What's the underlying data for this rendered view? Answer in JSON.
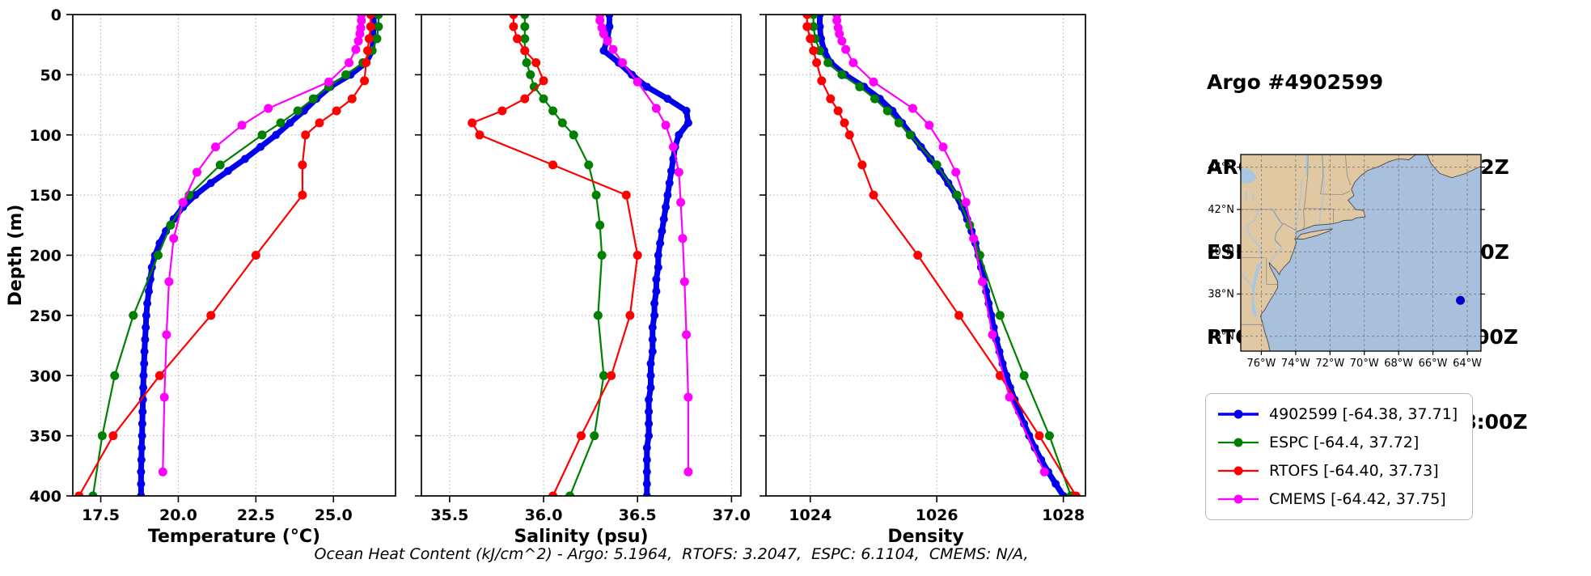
{
  "header": {
    "title": "Argo #4902599",
    "lines": [
      "ARGO: 2025-09-30T18:32Z",
      "ESPC : 2025-09-30T18:00Z",
      "RTOFS: 2025-09-30T18:00Z",
      "CMEMS: 2025-09-30T18:00Z"
    ]
  },
  "legend": {
    "items": [
      {
        "label": "4902599 [-64.38, 37.71]",
        "color": "#0000ee"
      },
      {
        "label": "ESPC [-64.4, 37.72]",
        "color": "#008000"
      },
      {
        "label": "RTOFS [-64.40, 37.73]",
        "color": "#ff0000"
      },
      {
        "label": "CMEMS [-64.42, 37.75]",
        "color": "#ff00ff"
      }
    ]
  },
  "map": {
    "extent": {
      "lon_min": -77.2,
      "lon_max": -63.2,
      "lat_min": 35.3,
      "lat_max": 44.6
    },
    "lat_ticks": [
      {
        "v": 44,
        "t": "44°N"
      },
      {
        "v": 42,
        "t": "42°N"
      },
      {
        "v": 40,
        "t": "40°N"
      },
      {
        "v": 38,
        "t": "38°N"
      },
      {
        "v": 36,
        "t": "36°N"
      }
    ],
    "lon_ticks": [
      {
        "v": -76,
        "t": "76°W"
      },
      {
        "v": -74,
        "t": "74°W"
      },
      {
        "v": -72,
        "t": "72°W"
      },
      {
        "v": -70,
        "t": "70°W"
      },
      {
        "v": -68,
        "t": "68°W"
      },
      {
        "v": -66,
        "t": "66°W"
      },
      {
        "v": -64,
        "t": "64°W"
      }
    ],
    "float_marker": {
      "lon": -64.4,
      "lat": 37.7,
      "color": "#0000cd"
    },
    "land_color": "#dfc8a2",
    "ocean_color": "#a9c0dd",
    "water_color": "#aac6e3",
    "border_color": "#8a8a8a",
    "coast_color": "#4a4a4a"
  },
  "chart_data": {
    "type": "line",
    "annotation": "Ocean Heat Content (kJ/cm^2) - Argo: 5.1964,  RTOFS: 3.2047,  ESPC: 6.1104,  CMEMS: N/A,",
    "y_axis": {
      "label": "Depth (m)",
      "lim": [
        0,
        400
      ],
      "ticks": [
        0,
        50,
        100,
        150,
        200,
        250,
        300,
        350,
        400
      ]
    },
    "panels": [
      {
        "key": "temperature",
        "xlabel": "Temperature (°C)",
        "xlim": [
          16.6,
          27.0
        ],
        "xticks": [
          {
            "v": 17.5,
            "t": "17.5"
          },
          {
            "v": 20.0,
            "t": "20.0"
          },
          {
            "v": 22.5,
            "t": "22.5"
          },
          {
            "v": 25.0,
            "t": "25.0"
          }
        ]
      },
      {
        "key": "salinity",
        "xlabel": "Salinity (psu)",
        "xlim": [
          35.35,
          37.05
        ],
        "xticks": [
          {
            "v": 35.5,
            "t": "35.5"
          },
          {
            "v": 36.0,
            "t": "36.0"
          },
          {
            "v": 36.5,
            "t": "36.5"
          },
          {
            "v": 37.0,
            "t": "37.0"
          }
        ]
      },
      {
        "key": "density",
        "xlabel": "Density",
        "xlim": [
          1023.3,
          1028.35
        ],
        "xticks": [
          {
            "v": 1024,
            "t": "1024"
          },
          {
            "v": 1026,
            "t": "1026"
          },
          {
            "v": 1028,
            "t": "1028"
          }
        ]
      }
    ],
    "series": [
      {
        "name": "4902599",
        "color": "#0000ee",
        "lw": 7,
        "ms": 5,
        "depths": [
          0,
          10,
          20,
          30,
          40,
          50,
          60,
          70,
          80,
          90,
          100,
          110,
          120,
          130,
          140,
          150,
          160,
          170,
          180,
          190,
          200,
          210,
          220,
          230,
          240,
          250,
          260,
          270,
          280,
          290,
          300,
          310,
          320,
          330,
          340,
          350,
          360,
          370,
          380,
          390,
          400
        ],
        "temperature": [
          26.3,
          26.3,
          26.28,
          26.25,
          26.05,
          25.55,
          24.9,
          24.45,
          24.05,
          23.6,
          23.15,
          22.65,
          22.15,
          21.6,
          21.05,
          20.55,
          20.15,
          19.85,
          19.6,
          19.4,
          19.25,
          19.15,
          19.1,
          19.05,
          19.0,
          18.97,
          18.95,
          18.93,
          18.91,
          18.9,
          18.88,
          18.87,
          18.86,
          18.85,
          18.84,
          18.83,
          18.82,
          18.81,
          18.8,
          18.8,
          18.8
        ],
        "salinity": [
          36.35,
          36.35,
          36.34,
          36.32,
          36.4,
          36.47,
          36.55,
          36.66,
          36.76,
          36.77,
          36.72,
          36.7,
          36.69,
          36.68,
          36.67,
          36.66,
          36.65,
          36.64,
          36.63,
          36.62,
          36.61,
          36.61,
          36.6,
          36.6,
          36.59,
          36.59,
          36.58,
          36.58,
          36.58,
          36.57,
          36.57,
          36.57,
          36.56,
          36.56,
          36.56,
          36.56,
          36.55,
          36.55,
          36.55,
          36.55,
          36.55
        ],
        "density": [
          1024.15,
          1024.15,
          1024.17,
          1024.22,
          1024.32,
          1024.55,
          1024.85,
          1025.1,
          1025.3,
          1025.45,
          1025.6,
          1025.75,
          1025.9,
          1026.05,
          1026.18,
          1026.3,
          1026.4,
          1026.48,
          1026.55,
          1026.61,
          1026.66,
          1026.7,
          1026.74,
          1026.78,
          1026.82,
          1026.86,
          1026.9,
          1026.94,
          1026.99,
          1027.04,
          1027.1,
          1027.16,
          1027.23,
          1027.3,
          1027.38,
          1027.46,
          1027.55,
          1027.65,
          1027.76,
          1027.88,
          1028.0
        ]
      },
      {
        "name": "ESPC",
        "color": "#008000",
        "lw": 2.2,
        "ms": 5.5,
        "depths": [
          0,
          10,
          20,
          30,
          40,
          50,
          60,
          70,
          80,
          90,
          100,
          125,
          150,
          175,
          200,
          250,
          300,
          350,
          400
        ],
        "temperature": [
          26.45,
          26.45,
          26.4,
          26.25,
          25.95,
          25.4,
          24.85,
          24.35,
          23.85,
          23.3,
          22.7,
          21.35,
          20.35,
          19.75,
          19.35,
          18.55,
          17.95,
          17.55,
          17.25
        ],
        "salinity": [
          35.9,
          35.9,
          35.9,
          35.9,
          35.91,
          35.93,
          35.95,
          36.0,
          36.05,
          36.1,
          36.16,
          36.24,
          36.28,
          36.3,
          36.31,
          36.29,
          36.32,
          36.27,
          36.14
        ],
        "density": [
          1024.05,
          1024.05,
          1024.08,
          1024.15,
          1024.28,
          1024.5,
          1024.78,
          1025.02,
          1025.22,
          1025.4,
          1025.58,
          1026.0,
          1026.32,
          1026.52,
          1026.68,
          1027.0,
          1027.38,
          1027.78,
          1028.12
        ]
      },
      {
        "name": "RTOFS",
        "color": "#ff0000",
        "lw": 2.2,
        "ms": 5.5,
        "depths": [
          0,
          10,
          20,
          30,
          40,
          55,
          70,
          80,
          90,
          100,
          125,
          150,
          200,
          250,
          300,
          350,
          400
        ],
        "temperature": [
          26.2,
          26.2,
          26.15,
          26.1,
          26.05,
          26.0,
          25.6,
          25.1,
          24.55,
          24.1,
          24.0,
          24.0,
          22.5,
          21.05,
          19.4,
          17.9,
          16.8
        ],
        "salinity": [
          35.84,
          35.84,
          35.86,
          35.9,
          35.96,
          36.0,
          35.9,
          35.78,
          35.62,
          35.66,
          36.05,
          36.44,
          36.5,
          36.46,
          36.36,
          36.2,
          36.05
        ],
        "density": [
          1023.95,
          1023.95,
          1024.0,
          1024.05,
          1024.1,
          1024.18,
          1024.32,
          1024.44,
          1024.54,
          1024.62,
          1024.82,
          1025.0,
          1025.7,
          1026.35,
          1027.0,
          1027.62,
          1028.2
        ]
      },
      {
        "name": "CMEMS",
        "color": "#ff00ff",
        "lw": 2.2,
        "ms": 5.5,
        "depths": [
          0,
          5,
          11,
          16,
          22,
          29,
          40,
          56,
          78,
          92,
          110,
          131,
          156,
          186,
          222,
          266,
          318,
          380
        ],
        "temperature": [
          25.9,
          25.9,
          25.88,
          25.85,
          25.8,
          25.72,
          25.5,
          24.85,
          22.9,
          22.05,
          21.2,
          20.6,
          20.15,
          19.85,
          19.7,
          19.62,
          19.55,
          19.5
        ],
        "salinity": [
          36.3,
          36.3,
          36.31,
          36.32,
          36.34,
          36.37,
          36.42,
          36.5,
          36.6,
          36.65,
          36.69,
          36.72,
          36.73,
          36.74,
          36.75,
          36.76,
          36.77,
          36.77
        ],
        "density": [
          1024.42,
          1024.42,
          1024.44,
          1024.46,
          1024.5,
          1024.56,
          1024.68,
          1025.0,
          1025.62,
          1025.88,
          1026.1,
          1026.3,
          1026.46,
          1026.58,
          1026.72,
          1026.88,
          1027.15,
          1027.7
        ]
      }
    ]
  }
}
